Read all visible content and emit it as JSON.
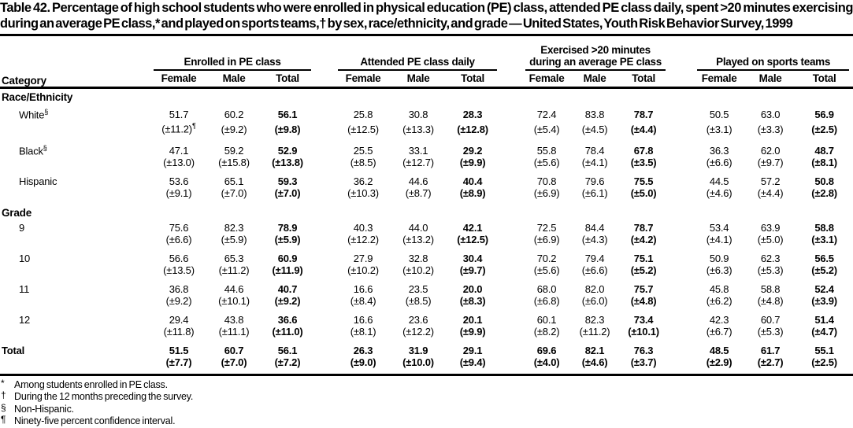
{
  "page": {
    "background": "#ffffff",
    "text_color": "#000000"
  },
  "title": "Table 42. Percentage of high school students who were enrolled in physical education (PE) class, attended PE class daily, spent >20 minutes exercising during an average PE class,* and played on sports teams,† by sex, race/ethnicity, and grade — United States, Youth Risk Behavior Survey, 1999",
  "table": {
    "category_header": "Category",
    "column_groups": [
      {
        "lines": [
          "Enrolled in PE class"
        ]
      },
      {
        "lines": [
          "Attended PE class daily"
        ]
      },
      {
        "lines": [
          "Exercised >20 minutes",
          "during an average PE class"
        ]
      },
      {
        "lines": [
          "Played on sports teams"
        ]
      }
    ],
    "subcolumns": [
      "Female",
      "Male",
      "Total"
    ],
    "sections": [
      {
        "label": "Race/Ethnicity",
        "rows": [
          {
            "label": "White",
            "label_sup": "§",
            "values": [
              "51.7",
              "60.2",
              "56.1",
              "25.8",
              "30.8",
              "28.3",
              "72.4",
              "83.8",
              "78.7",
              "50.5",
              "63.0",
              "56.9"
            ],
            "cis": [
              "(±11.2)",
              "(±9.2)",
              "(±9.8)",
              "(±12.5)",
              "(±13.3)",
              "(±12.8)",
              "(±5.4)",
              "(±4.5)",
              "(±4.4)",
              "(±3.1)",
              "(±3.3)",
              "(±2.5)"
            ],
            "ci_sup": {
              "index": 0,
              "mark": "¶"
            }
          },
          {
            "label": "Black",
            "label_sup": "§",
            "values": [
              "47.1",
              "59.2",
              "52.9",
              "25.5",
              "33.1",
              "29.2",
              "55.8",
              "78.4",
              "67.8",
              "36.3",
              "62.0",
              "48.7"
            ],
            "cis": [
              "(±13.0)",
              "(±15.8)",
              "(±13.8)",
              "(±8.5)",
              "(±12.7)",
              "(±9.9)",
              "(±5.6)",
              "(±4.1)",
              "(±3.5)",
              "(±6.6)",
              "(±9.7)",
              "(±8.1)"
            ]
          },
          {
            "label": "Hispanic",
            "values": [
              "53.6",
              "65.1",
              "59.3",
              "36.2",
              "44.6",
              "40.4",
              "70.8",
              "79.6",
              "75.5",
              "44.5",
              "57.2",
              "50.8"
            ],
            "cis": [
              "(±9.1)",
              "(±7.0)",
              "(±7.0)",
              "(±10.3)",
              "(±8.7)",
              "(±8.9)",
              "(±6.9)",
              "(±6.1)",
              "(±5.0)",
              "(±4.6)",
              "(±4.4)",
              "(±2.8)"
            ]
          }
        ]
      },
      {
        "label": "Grade",
        "rows": [
          {
            "label": "9",
            "values": [
              "75.6",
              "82.3",
              "78.9",
              "40.3",
              "44.0",
              "42.1",
              "72.5",
              "84.4",
              "78.7",
              "53.4",
              "63.9",
              "58.8"
            ],
            "cis": [
              "(±6.6)",
              "(±5.9)",
              "(±5.9)",
              "(±12.2)",
              "(±13.2)",
              "(±12.5)",
              "(±6.9)",
              "(±4.3)",
              "(±4.2)",
              "(±4.1)",
              "(±5.0)",
              "(±3.1)"
            ]
          },
          {
            "label": "10",
            "values": [
              "56.6",
              "65.3",
              "60.9",
              "27.9",
              "32.8",
              "30.4",
              "70.2",
              "79.4",
              "75.1",
              "50.9",
              "62.3",
              "56.5"
            ],
            "cis": [
              "(±13.5)",
              "(±11.2)",
              "(±11.9)",
              "(±10.2)",
              "(±10.2)",
              "(±9.7)",
              "(±5.6)",
              "(±6.6)",
              "(±5.2)",
              "(±6.3)",
              "(±5.3)",
              "(±5.2)"
            ]
          },
          {
            "label": "11",
            "values": [
              "36.8",
              "44.6",
              "40.7",
              "16.6",
              "23.5",
              "20.0",
              "68.0",
              "82.0",
              "75.7",
              "45.8",
              "58.8",
              "52.4"
            ],
            "cis": [
              "(±9.2)",
              "(±10.1)",
              "(±9.2)",
              "(±8.4)",
              "(±8.5)",
              "(±8.3)",
              "(±6.8)",
              "(±6.0)",
              "(±4.8)",
              "(±6.2)",
              "(±4.8)",
              "(±3.9)"
            ]
          },
          {
            "label": "12",
            "values": [
              "29.4",
              "43.8",
              "36.6",
              "16.6",
              "23.6",
              "20.1",
              "60.1",
              "82.3",
              "73.4",
              "42.3",
              "60.7",
              "51.4"
            ],
            "cis": [
              "(±11.8)",
              "(±11.1)",
              "(±11.0)",
              "(±8.1)",
              "(±12.2)",
              "(±9.9)",
              "(±8.2)",
              "(±11.2)",
              "(±10.1)",
              "(±6.7)",
              "(±5.3)",
              "(±4.7)"
            ]
          }
        ]
      }
    ],
    "total_row": {
      "label": "Total",
      "values": [
        "51.5",
        "60.7",
        "56.1",
        "26.3",
        "31.9",
        "29.1",
        "69.6",
        "82.1",
        "76.3",
        "48.5",
        "61.7",
        "55.1"
      ],
      "cis": [
        "(±7.7)",
        "(±7.0)",
        "(±7.2)",
        "(±9.0)",
        "(±10.0)",
        "(±9.4)",
        "(±4.0)",
        "(±4.6)",
        "(±3.7)",
        "(±2.9)",
        "(±2.7)",
        "(±2.5)"
      ]
    }
  },
  "footnotes": [
    {
      "marker": "*",
      "text": "Among students enrolled in PE class."
    },
    {
      "marker": "†",
      "text": "During the 12 months preceding the survey."
    },
    {
      "marker": "§",
      "text": "Non-Hispanic."
    },
    {
      "marker": "¶",
      "text": "Ninety-five percent confidence interval."
    }
  ]
}
